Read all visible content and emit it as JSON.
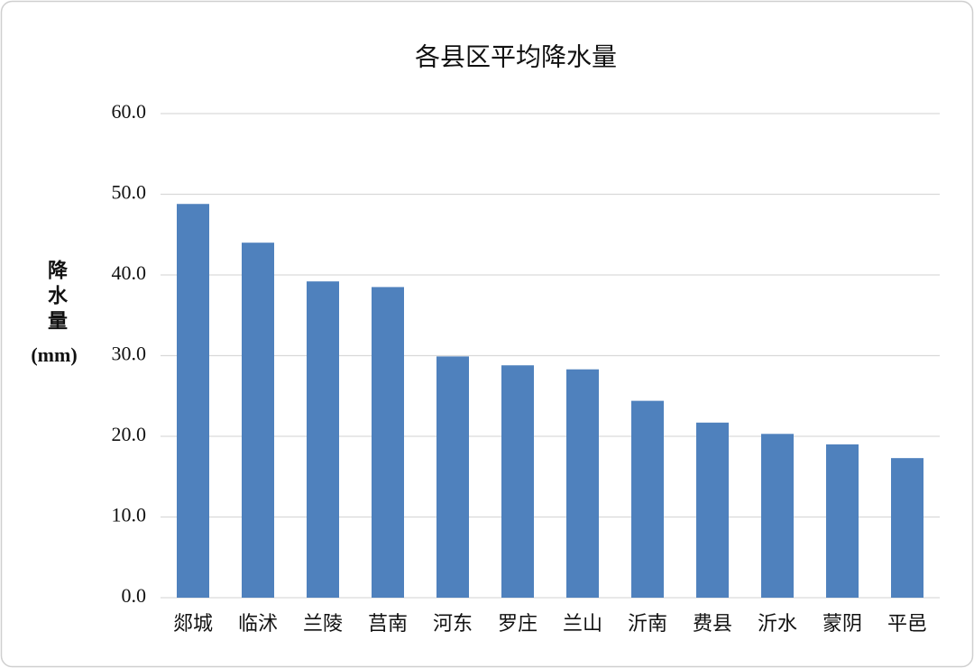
{
  "chart_data": {
    "type": "bar",
    "title": "各县区平均降水量",
    "y_label": "降水量",
    "y_unit": "(mm)",
    "categories": [
      "郯城",
      "临沭",
      "兰陵",
      "莒南",
      "河东",
      "罗庄",
      "兰山",
      "沂南",
      "费县",
      "沂水",
      "蒙阴",
      "平邑"
    ],
    "values": [
      48.8,
      44.0,
      39.2,
      38.5,
      29.9,
      28.8,
      28.3,
      24.4,
      21.7,
      20.3,
      19.0,
      17.3
    ],
    "color": "#4f81bd",
    "ylim": [
      0,
      60
    ],
    "yticks": [
      {
        "value": 0,
        "label": "0.0"
      },
      {
        "value": 10,
        "label": "10.0"
      },
      {
        "value": 20,
        "label": "20.0"
      },
      {
        "value": 30,
        "label": "30.0"
      },
      {
        "value": 40,
        "label": "40.0"
      },
      {
        "value": 50,
        "label": "50.0"
      },
      {
        "value": 60,
        "label": "60.0"
      }
    ],
    "grid": true
  }
}
